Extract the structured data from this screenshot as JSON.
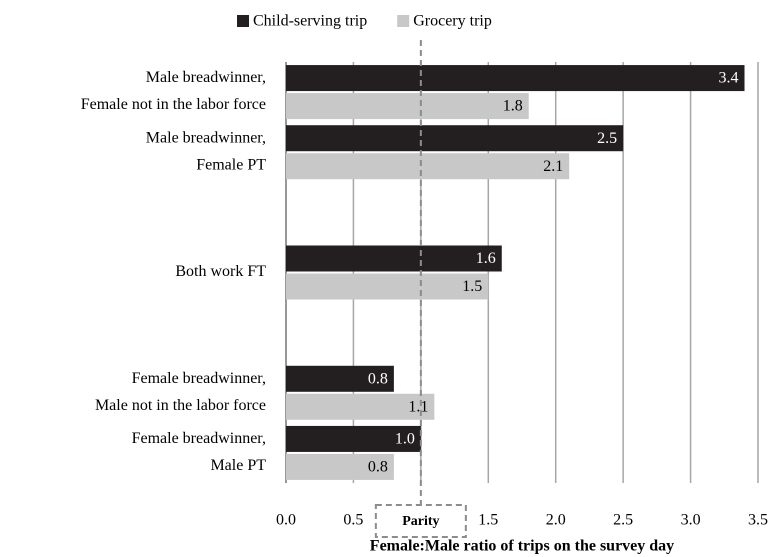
{
  "chart_data": {
    "type": "bar",
    "orientation": "horizontal",
    "categories": [
      [
        "Male breadwinner,",
        "Female not in the labor force"
      ],
      [
        "Male breadwinner,",
        "Female PT"
      ],
      null,
      [
        "Both work FT"
      ],
      null,
      [
        "Female breadwinner,",
        "Male not in the labor force"
      ],
      [
        "Female breadwinner,",
        "Male PT"
      ]
    ],
    "series": [
      {
        "name": "Child-serving trip",
        "color": "#231f20",
        "values": [
          3.4,
          2.5,
          null,
          1.6,
          null,
          0.8,
          1.0
        ],
        "value_labels": [
          "3.4",
          "2.5",
          null,
          "1.6",
          null,
          "0.8",
          "1.0"
        ]
      },
      {
        "name": "Grocery trip",
        "color": "#c8c8c8",
        "values": [
          1.8,
          2.1,
          null,
          1.5,
          null,
          1.1,
          0.8
        ],
        "value_labels": [
          "1.8",
          "2.1",
          null,
          "1.5",
          null,
          "1.1",
          "0.8"
        ]
      }
    ],
    "xlim": [
      0,
      3.5
    ],
    "xticks": [
      {
        "value": 0,
        "label": "0.0"
      },
      {
        "value": 0.5,
        "label": "0.5"
      },
      {
        "value": 1,
        "label": "1.0"
      },
      {
        "value": 1.5,
        "label": "1.5"
      },
      {
        "value": 2,
        "label": "2.0"
      },
      {
        "value": 2.5,
        "label": "2.5"
      },
      {
        "value": 3,
        "label": "3.0"
      },
      {
        "value": 3.5,
        "label": "3.5"
      }
    ],
    "x_label": "Female:Male ratio of trips on the survey day",
    "reference_line": {
      "value": 1,
      "label": "Parity"
    },
    "grid": true,
    "legend": "top"
  }
}
